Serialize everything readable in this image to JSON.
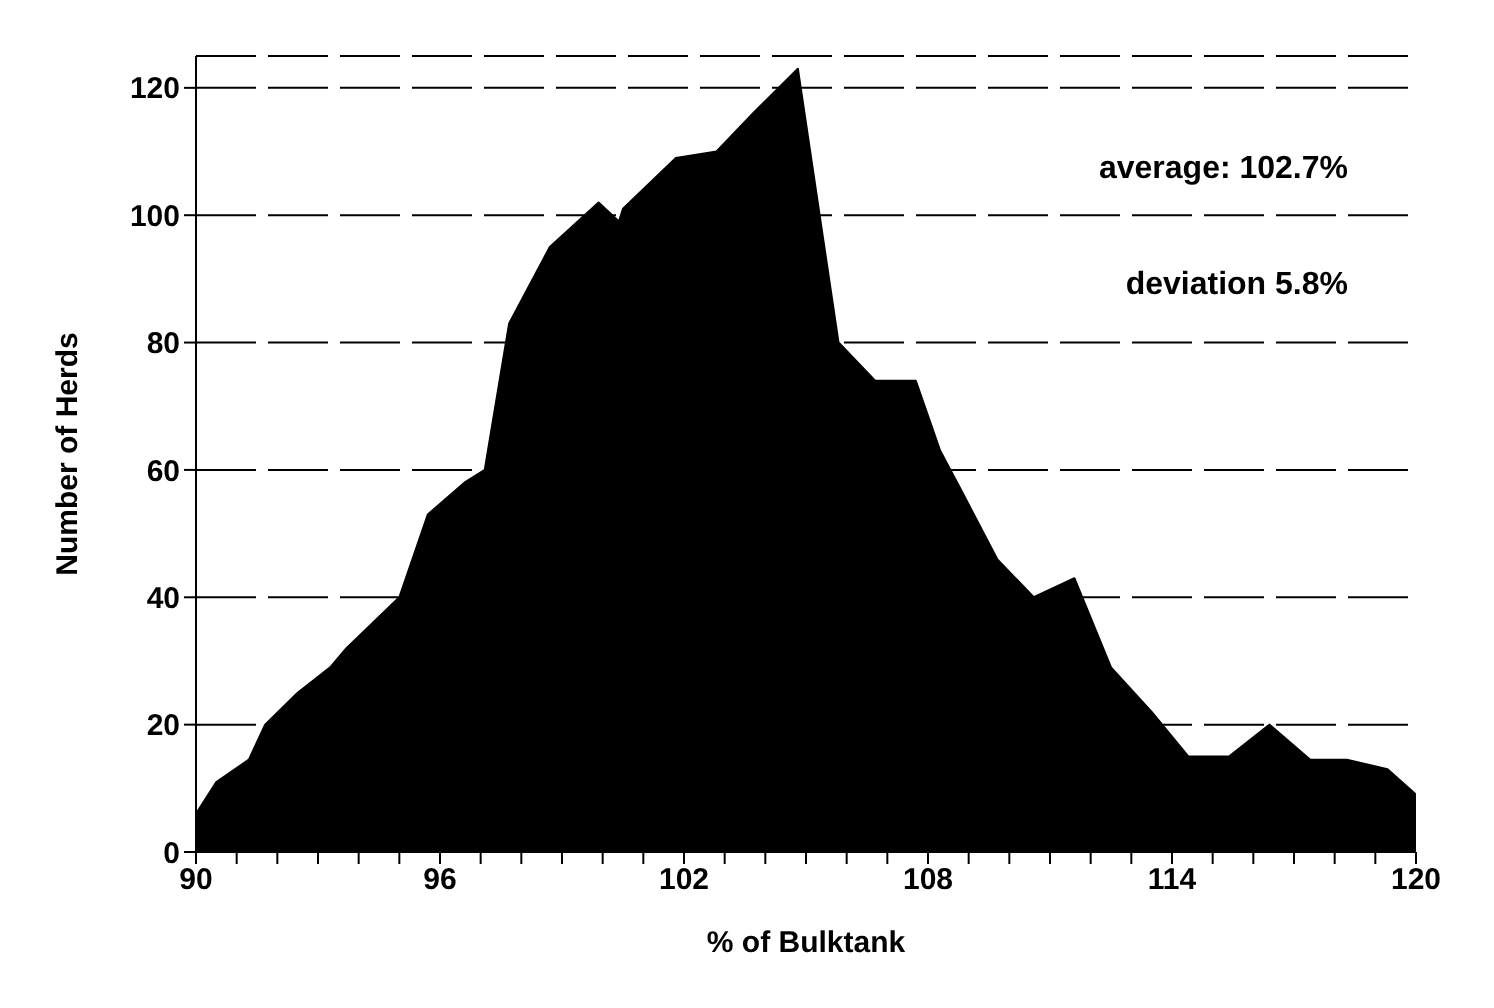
{
  "chart_data": {
    "type": "area",
    "xlabel": "% of Bulktank",
    "ylabel": "Number of Herds",
    "x": [
      90,
      90.5,
      91.3,
      91.7,
      92.5,
      93.3,
      93.7,
      95,
      95.7,
      96.6,
      97.1,
      97.7,
      98.7,
      99.9,
      100.4,
      100.5,
      101.8,
      102.8,
      103.7,
      104.8,
      105.8,
      106.7,
      107.7,
      108.3,
      108.8,
      109.7,
      110.6,
      111.6,
      112.5,
      113.5,
      114.4,
      115.4,
      116.4,
      117.4,
      118.3,
      119.3,
      120
    ],
    "series": [
      {
        "color": "#000000",
        "values": [
          6,
          11,
          14.5,
          20,
          25,
          29,
          32,
          40,
          53,
          58,
          60,
          83,
          95,
          102,
          99,
          101,
          109,
          110,
          116,
          123,
          80,
          74,
          74,
          63,
          57,
          46,
          40,
          43,
          29,
          22,
          15,
          15,
          20,
          14.5,
          14.5,
          13,
          9
        ]
      }
    ],
    "xlim": [
      90,
      120
    ],
    "ylim": [
      0,
      125
    ],
    "xticks": [
      90,
      {
        "value": 91,
        "label": null
      },
      {
        "value": 92,
        "label": null
      },
      {
        "value": 93,
        "label": null
      },
      {
        "value": 94,
        "label": null
      },
      {
        "value": 95,
        "label": null
      },
      96,
      {
        "value": 97,
        "label": null
      },
      {
        "value": 98,
        "label": null
      },
      {
        "value": 99,
        "label": null
      },
      {
        "value": 100,
        "label": null
      },
      {
        "value": 101,
        "label": null
      },
      102,
      {
        "value": 103,
        "label": null
      },
      {
        "value": 104,
        "label": null
      },
      {
        "value": 105,
        "label": null
      },
      {
        "value": 106,
        "label": null
      },
      {
        "value": 107,
        "label": null
      },
      108,
      {
        "value": 109,
        "label": null
      },
      {
        "value": 110,
        "label": null
      },
      {
        "value": 111,
        "label": null
      },
      {
        "value": 112,
        "label": null
      },
      {
        "value": 113,
        "label": null
      },
      114,
      {
        "value": 115,
        "label": null
      },
      {
        "value": 116,
        "label": null
      },
      {
        "value": 117,
        "label": null
      },
      {
        "value": 118,
        "label": null
      },
      {
        "value": 119,
        "label": null
      },
      120
    ],
    "yticks": [
      0,
      20,
      40,
      60,
      80,
      100,
      120
    ],
    "grid": "y",
    "annotations": [
      "average: 102.7%",
      "deviation 5.8%"
    ]
  }
}
